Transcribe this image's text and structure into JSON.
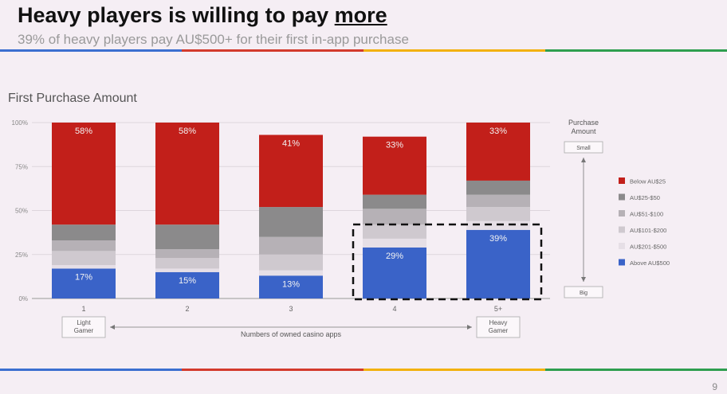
{
  "slide": {
    "title_main": "Heavy players is willing to pay ",
    "title_emphasis": "more",
    "subtitle": "39% of heavy players pay AU$500+ for their first in-app purchase",
    "page_number": "9",
    "stripe_colors": [
      "#3b6fd0",
      "#d33a2c",
      "#f2b10d",
      "#2e9e4f"
    ]
  },
  "chart_data": {
    "type": "bar",
    "stacked": true,
    "title": "First Purchase Amount",
    "xlabel": "Numbers of owned casino apps",
    "categories": [
      "1",
      "2",
      "3",
      "4",
      "5+"
    ],
    "y_ticks": [
      "0%",
      "25%",
      "50%",
      "75%",
      "100%"
    ],
    "ylim": [
      0,
      100
    ],
    "grid": true,
    "legend_position": "right",
    "series": [
      {
        "name": "Above AU$500",
        "color": "#3a63c8",
        "values": [
          17,
          15,
          13,
          29,
          39
        ],
        "labels": [
          "17%",
          "15%",
          "13%",
          "29%",
          "39%"
        ]
      },
      {
        "name": "AU$201-$500",
        "color": "#e6dfe6",
        "values": [
          2,
          2,
          3,
          5,
          5
        ]
      },
      {
        "name": "AU$101-$200",
        "color": "#cfc9cf",
        "values": [
          8,
          6,
          9,
          8,
          8
        ]
      },
      {
        "name": "AU$51-$100",
        "color": "#b6b1b6",
        "values": [
          6,
          5,
          10,
          9,
          7
        ]
      },
      {
        "name": "AU$25-$50",
        "color": "#8b8a8b",
        "values": [
          9,
          14,
          17,
          8,
          8
        ]
      },
      {
        "name": "Below AU$25",
        "color": "#c21f1a",
        "values": [
          58,
          58,
          41,
          33,
          33
        ],
        "labels": [
          "58%",
          "58%",
          "41%",
          "33%",
          "33%"
        ]
      }
    ],
    "legend_order": [
      "Below AU$25",
      "AU$25-$50",
      "AU$51-$100",
      "AU$101-$200",
      "AU$201-$500",
      "Above AU$500"
    ],
    "highlight_categories": [
      "4",
      "5+"
    ],
    "gamer_labels": {
      "left": "Light\nGamer",
      "right": "Heavy\nGamer"
    },
    "purchase_scale": {
      "title": "Purchase\nAmount",
      "top": "Small",
      "bottom": "Big"
    }
  }
}
